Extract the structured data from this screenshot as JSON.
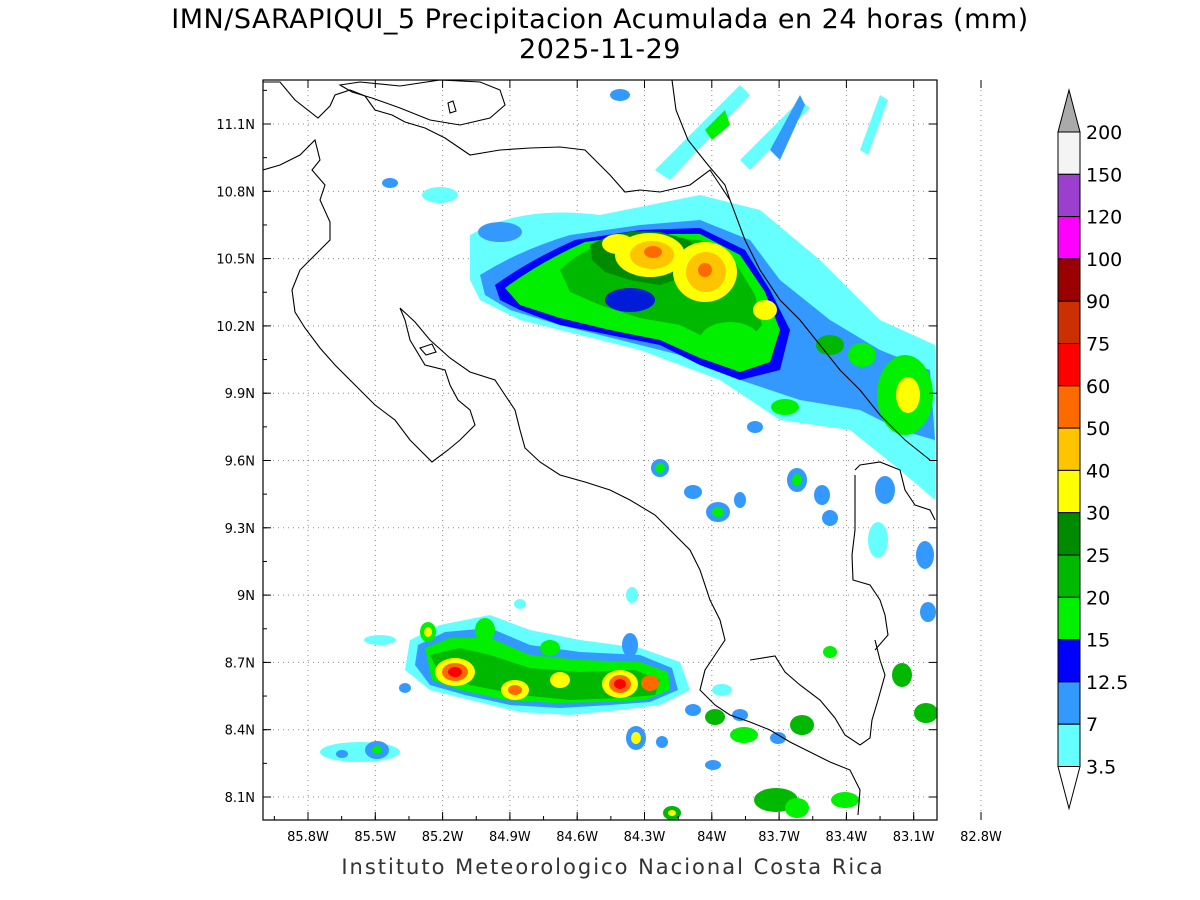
{
  "map": {
    "title": "IMN/SARAPIQUI_5 Precipitacion Acumulada en 24 horas (mm)",
    "date": "2025-11-29",
    "footer": "Instituto Meteorologico Nacional Costa Rica",
    "lon_labels": [
      "85.8W",
      "85.5W",
      "85.2W",
      "84.9W",
      "84.6W",
      "84.3W",
      "84W",
      "83.7W",
      "83.4W",
      "83.1W",
      "82.8W"
    ],
    "lat_labels": [
      "11.1N",
      "10.8N",
      "10.5N",
      "10.2N",
      "9.9N",
      "9.6N",
      "9.3N",
      "9N",
      "8.7N",
      "8.4N",
      "8.1N"
    ]
  },
  "legend": {
    "levels": [
      "200",
      "150",
      "120",
      "100",
      "90",
      "75",
      "60",
      "50",
      "40",
      "30",
      "25",
      "20",
      "15",
      "12.5",
      "7",
      "3.5"
    ],
    "colors": [
      "#f4f4f4",
      "#9b3fcf",
      "#ff00ff",
      "#9b0000",
      "#cc3000",
      "#ff0000",
      "#ff6a00",
      "#ffc400",
      "#ffff00",
      "#008a00",
      "#00b800",
      "#00f000",
      "#0000ff",
      "#3399ff",
      "#66ffff"
    ],
    "overflow_color": "#aaaaaa"
  }
}
